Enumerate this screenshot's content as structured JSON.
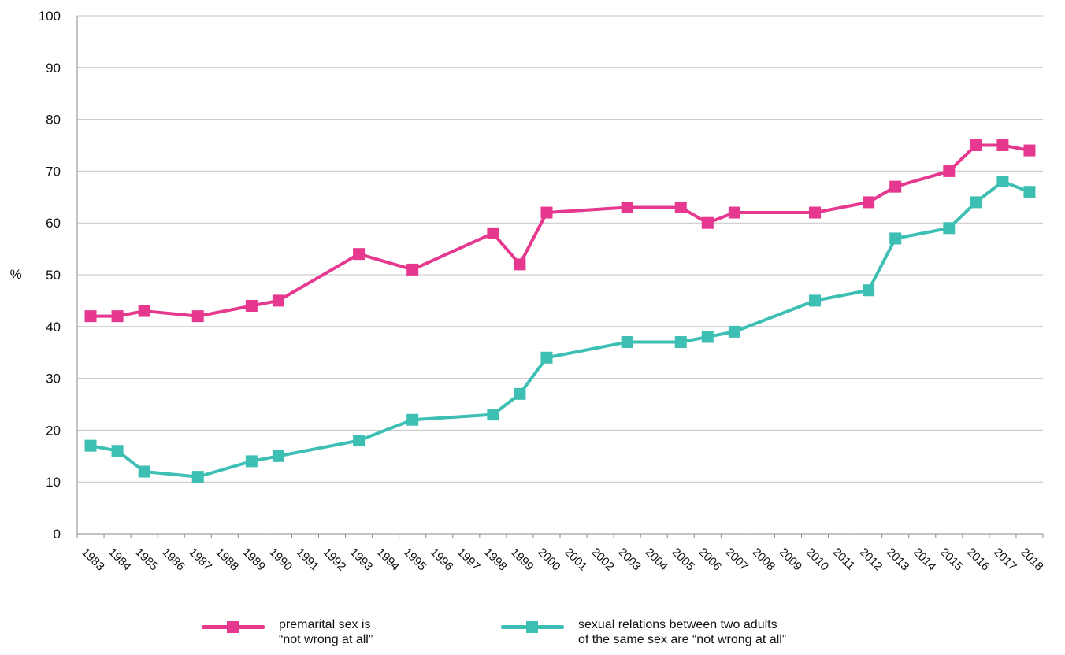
{
  "chart_data": {
    "type": "line",
    "ylabel": "%",
    "xlabel": "",
    "title": "",
    "ylim": [
      0,
      100
    ],
    "yticks": [
      0,
      10,
      20,
      30,
      40,
      50,
      60,
      70,
      80,
      90,
      100
    ],
    "categories": [
      "1983",
      "1984",
      "1985",
      "1986",
      "1987",
      "1988",
      "1989",
      "1990",
      "1991",
      "1992",
      "1993",
      "1994",
      "1995",
      "1996",
      "1997",
      "1998",
      "1999",
      "2000",
      "2001",
      "2002",
      "2003",
      "2004",
      "2005",
      "2006",
      "2007",
      "2008",
      "2009",
      "2010",
      "2011",
      "2012",
      "2013",
      "2014",
      "2015",
      "2016",
      "2017",
      "2018"
    ],
    "grid": true,
    "legend_position": "bottom",
    "series": [
      {
        "name_lines": [
          "premarital sex is",
          "“not wrong at all”"
        ],
        "color": "#e5388e",
        "points": [
          {
            "x": "1983",
            "y": 42
          },
          {
            "x": "1984",
            "y": 42
          },
          {
            "x": "1985",
            "y": 43
          },
          {
            "x": "1987",
            "y": 42
          },
          {
            "x": "1989",
            "y": 44
          },
          {
            "x": "1990",
            "y": 45
          },
          {
            "x": "1993",
            "y": 54
          },
          {
            "x": "1995",
            "y": 51
          },
          {
            "x": "1998",
            "y": 58
          },
          {
            "x": "1999",
            "y": 52
          },
          {
            "x": "2000",
            "y": 62
          },
          {
            "x": "2003",
            "y": 63
          },
          {
            "x": "2005",
            "y": 63
          },
          {
            "x": "2006",
            "y": 60
          },
          {
            "x": "2007",
            "y": 62
          },
          {
            "x": "2010",
            "y": 62
          },
          {
            "x": "2012",
            "y": 64
          },
          {
            "x": "2013",
            "y": 67
          },
          {
            "x": "2015",
            "y": 70
          },
          {
            "x": "2016",
            "y": 75
          },
          {
            "x": "2017",
            "y": 75
          },
          {
            "x": "2018",
            "y": 74
          }
        ]
      },
      {
        "name_lines": [
          "sexual relations between two adults",
          "of the same sex are “not wrong at all”"
        ],
        "color": "#3dbfb3",
        "points": [
          {
            "x": "1983",
            "y": 17
          },
          {
            "x": "1984",
            "y": 16
          },
          {
            "x": "1985",
            "y": 12
          },
          {
            "x": "1987",
            "y": 11
          },
          {
            "x": "1989",
            "y": 14
          },
          {
            "x": "1990",
            "y": 15
          },
          {
            "x": "1993",
            "y": 18
          },
          {
            "x": "1995",
            "y": 22
          },
          {
            "x": "1998",
            "y": 23
          },
          {
            "x": "1999",
            "y": 27
          },
          {
            "x": "2000",
            "y": 34
          },
          {
            "x": "2003",
            "y": 37
          },
          {
            "x": "2005",
            "y": 37
          },
          {
            "x": "2006",
            "y": 38
          },
          {
            "x": "2007",
            "y": 39
          },
          {
            "x": "2010",
            "y": 45
          },
          {
            "x": "2012",
            "y": 47
          },
          {
            "x": "2013",
            "y": 57
          },
          {
            "x": "2015",
            "y": 59
          },
          {
            "x": "2016",
            "y": 64
          },
          {
            "x": "2017",
            "y": 68
          },
          {
            "x": "2018",
            "y": 66
          }
        ]
      }
    ]
  }
}
